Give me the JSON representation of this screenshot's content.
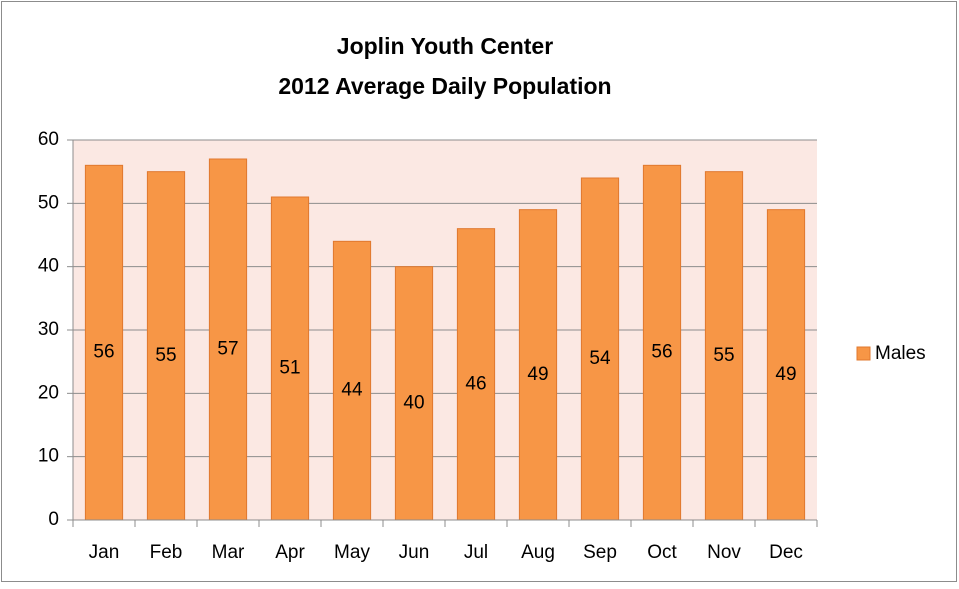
{
  "chart_data": {
    "type": "bar",
    "title": "Joplin Youth Center",
    "subtitle": "2012 Average Daily Population",
    "categories": [
      "Jan",
      "Feb",
      "Mar",
      "Apr",
      "May",
      "Jun",
      "Jul",
      "Aug",
      "Sep",
      "Oct",
      "Nov",
      "Dec"
    ],
    "series": [
      {
        "name": "Males",
        "color": "#f79646",
        "values": [
          56,
          55,
          57,
          51,
          44,
          40,
          46,
          49,
          54,
          56,
          55,
          49
        ]
      }
    ],
    "ylim": [
      0,
      60
    ],
    "yticks": [
      0,
      10,
      20,
      30,
      40,
      50,
      60
    ],
    "grid": true,
    "legend": "right",
    "plot_background": "#fbe8e3"
  }
}
